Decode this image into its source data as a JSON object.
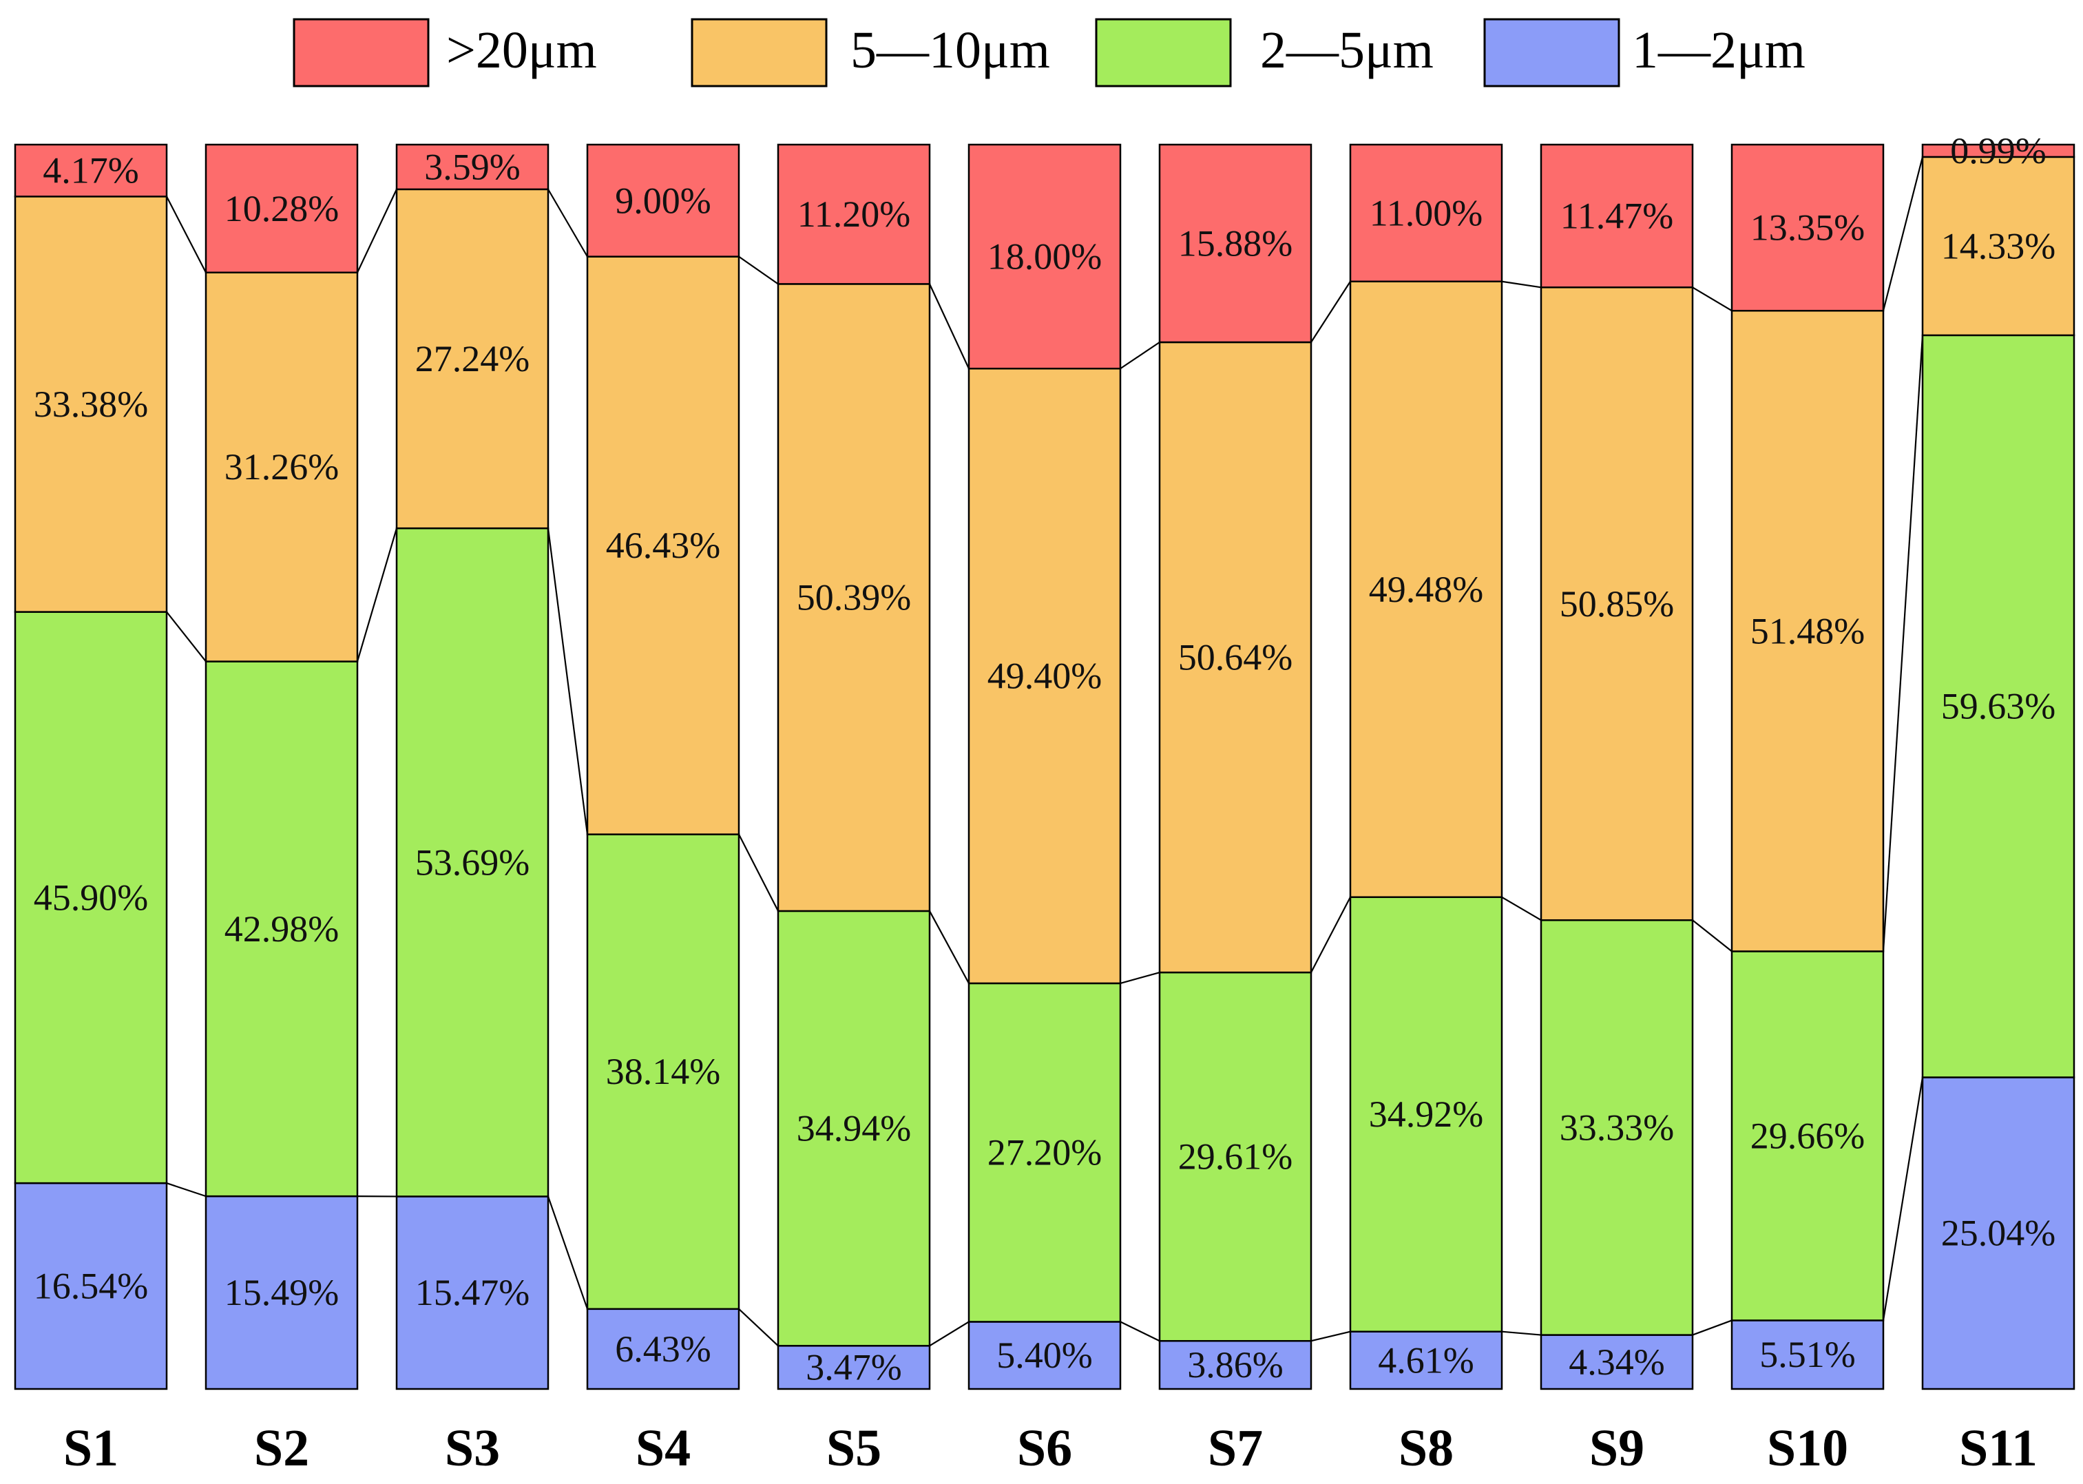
{
  "chart_data": {
    "type": "bar",
    "stacked": true,
    "orientation": "vertical",
    "title": "",
    "xlabel": "",
    "ylabel": "",
    "ylim": [
      0,
      100
    ],
    "grid": false,
    "legend_position": "top-center",
    "categories": [
      "S1",
      "S2",
      "S3",
      "S4",
      "S5",
      "S6",
      "S7",
      "S8",
      "S9",
      "S10",
      "S11"
    ],
    "series": [
      {
        "name": "1—2μm",
        "color": "#8b9cf8",
        "values": [
          16.54,
          15.49,
          15.47,
          6.43,
          3.47,
          5.4,
          3.86,
          4.61,
          4.34,
          5.51,
          25.04
        ],
        "labels": [
          "16.54%",
          "15.49%",
          "15.47%",
          "6.43%",
          "3.47%",
          "5.40%",
          "3.86%",
          "4.61%",
          "4.34%",
          "5.51%",
          "25.04%"
        ]
      },
      {
        "name": "2—5μm",
        "color": "#a4ec5c",
        "values": [
          45.9,
          42.98,
          53.69,
          38.14,
          34.94,
          27.2,
          29.61,
          34.92,
          33.33,
          29.66,
          59.63
        ],
        "labels": [
          "45.90%",
          "42.98%",
          "53.69%",
          "38.14%",
          "34.94%",
          "27.20%",
          "29.61%",
          "34.92%",
          "33.33%",
          "29.66%",
          "59.63%"
        ]
      },
      {
        "name": "5—10μm",
        "color": "#f9c466",
        "values": [
          33.38,
          31.26,
          27.24,
          46.43,
          50.39,
          49.4,
          50.64,
          49.48,
          50.85,
          51.48,
          14.33
        ],
        "labels": [
          "33.38%",
          "31.26%",
          "27.24%",
          "46.43%",
          "50.39%",
          "49.40%",
          "50.64%",
          "49.48%",
          "50.85%",
          "51.48%",
          "14.33%"
        ]
      },
      {
        "name": ">20μm",
        "color": "#fd6c6c",
        "values": [
          4.17,
          10.28,
          3.59,
          9.0,
          11.2,
          18.0,
          15.88,
          11.0,
          11.47,
          13.35,
          0.99
        ],
        "labels": [
          "4.17%",
          "10.28%",
          "3.59%",
          "9.00%",
          "11.20%",
          "18.00%",
          "15.88%",
          "11.00%",
          "11.47%",
          "13.35%",
          "0.99%"
        ]
      }
    ],
    "legend_order": [
      ">20μm",
      "5—10μm",
      "2—5μm",
      "1—2μm"
    ]
  }
}
